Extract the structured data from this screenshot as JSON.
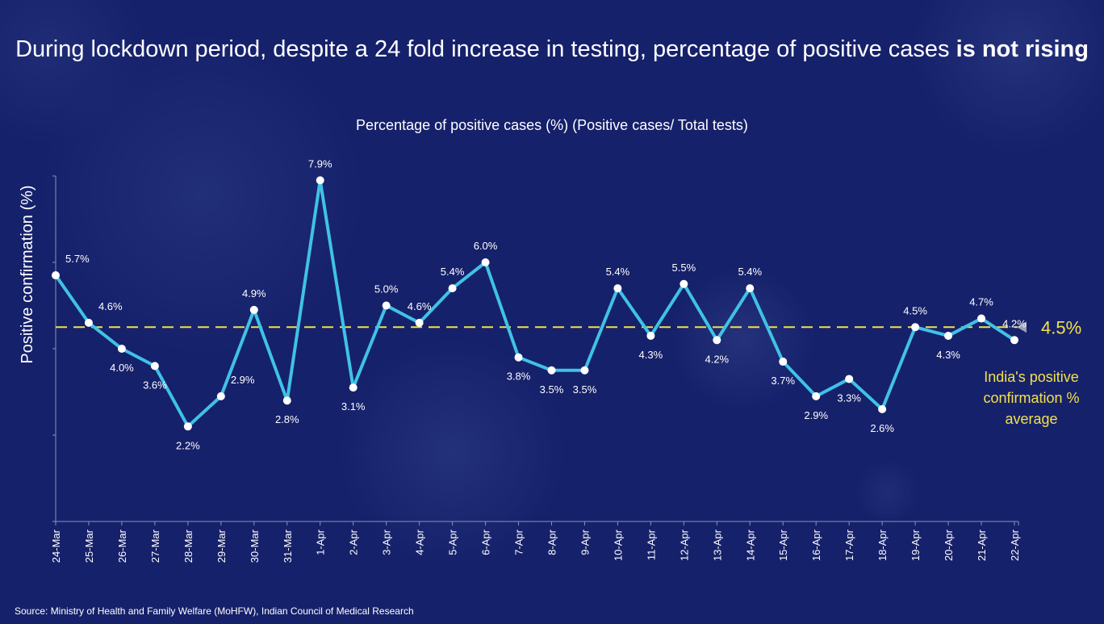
{
  "title": {
    "line_prefix": "During lockdown period, despite a 24 fold increase in testing, percentage of positive cases ",
    "emphasis": "is not rising"
  },
  "subtitle": "Percentage of positive cases (%) (Positive cases/ Total tests)",
  "source": "Source: Ministry of Health and Family Welfare (MoHFW), Indian Council of Medical Research",
  "colors": {
    "background": "#16216b",
    "line": "#3fc2e6",
    "marker": "#ffffff",
    "average_line": "#f2e14a",
    "axis": "#8a92b8"
  },
  "chart_data": {
    "type": "line",
    "title": "Percentage of positive cases (%) (Positive cases/ Total tests)",
    "xlabel": "",
    "ylabel": "Positive confirmation (%)",
    "ylim": [
      0,
      8
    ],
    "grid": false,
    "categories": [
      "24-Mar",
      "25-Mar",
      "26-Mar",
      "27-Mar",
      "28-Mar",
      "29-Mar",
      "30-Mar",
      "31-Mar",
      "1-Apr",
      "2-Apr",
      "3-Apr",
      "4-Apr",
      "5-Apr",
      "6-Apr",
      "7-Apr",
      "8-Apr",
      "9-Apr",
      "10-Apr",
      "11-Apr",
      "12-Apr",
      "13-Apr",
      "14-Apr",
      "15-Apr",
      "16-Apr",
      "17-Apr",
      "18-Apr",
      "19-Apr",
      "20-Apr",
      "21-Apr",
      "22-Apr"
    ],
    "series": [
      {
        "name": "Percentage of positive cases",
        "values": [
          5.7,
          4.6,
          4.0,
          3.6,
          2.2,
          2.9,
          4.9,
          2.8,
          7.9,
          3.1,
          5.0,
          4.6,
          5.4,
          6.0,
          3.8,
          3.5,
          3.5,
          5.4,
          4.3,
          5.5,
          4.2,
          5.4,
          3.7,
          2.9,
          3.3,
          2.6,
          4.5,
          4.3,
          4.7,
          4.2
        ],
        "labels": [
          "5.7%",
          "4.6%",
          "4.0%",
          "3.6%",
          "2.2%",
          "2.9%",
          "4.9%",
          "2.8%",
          "7.9%",
          "3.1%",
          "5.0%",
          "4.6%",
          "5.4%",
          "6.0%",
          "3.8%",
          "3.5%",
          "3.5%",
          "5.4%",
          "4.3%",
          "5.5%",
          "4.2%",
          "5.4%",
          "3.7%",
          "2.9%",
          "3.3%",
          "2.6%",
          "4.5%",
          "4.3%",
          "4.7%",
          "4.2%"
        ],
        "label_side": [
          "right",
          "right",
          "below",
          "below",
          "below",
          "right",
          "above",
          "below",
          "above",
          "below",
          "above",
          "above",
          "above",
          "above",
          "below",
          "below",
          "below",
          "above",
          "below",
          "above",
          "below",
          "above",
          "below",
          "below",
          "below",
          "below",
          "above",
          "below",
          "above",
          "above"
        ]
      }
    ],
    "reference_line": {
      "value": 4.5,
      "label": "4.5%",
      "note": "India's positive confirmation % average",
      "note_lines": [
        "India's positive",
        "confirmation %",
        "average"
      ]
    }
  }
}
